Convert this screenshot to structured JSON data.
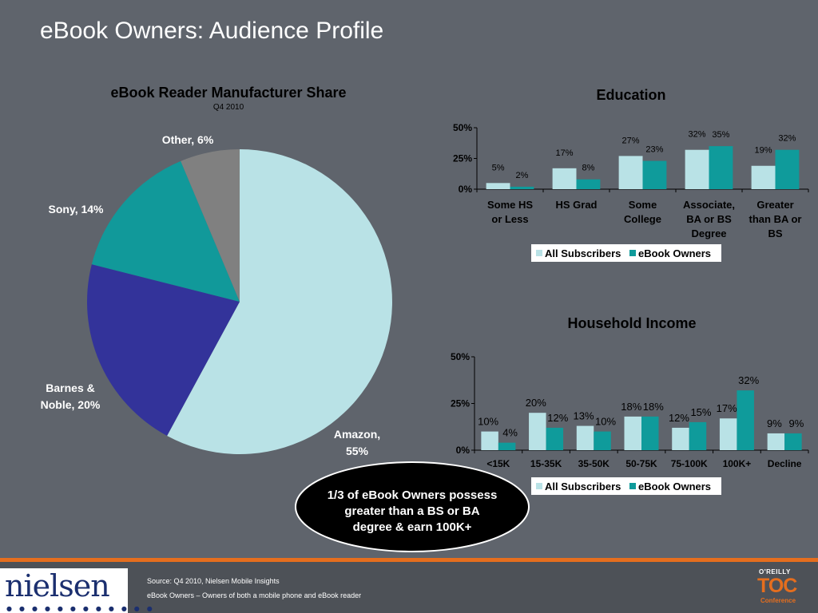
{
  "slide": {
    "title": "eBook Owners: Audience Profile",
    "callout": [
      "1/3 of eBook Owners possess",
      "greater than a BS or BA",
      "degree & earn 100K+"
    ]
  },
  "footer": {
    "source": "Source: Q4 2010, Nielsen Mobile Insights",
    "note": "eBook Owners – Owners of both a mobile phone and eBook reader",
    "nielsen_logo": "nielsen",
    "oreilly": "O'REILLY",
    "toc": "TOC",
    "conference": "Conference"
  },
  "colors": {
    "background": "#5f646c",
    "all_subscribers": "#b9e2e6",
    "ebook_owners": "#0f9b9b",
    "amazon": "#b9e2e6",
    "barnes_noble": "#33339a",
    "sony": "#11999a",
    "other": "#808080",
    "accent": "#e56e1e"
  },
  "chart_data": [
    {
      "type": "pie",
      "title": "eBook Reader Manufacturer Share",
      "subtitle": "Q4 2010",
      "slices": [
        {
          "label": "Amazon,",
          "value": 55,
          "value_label": "55%",
          "color": "#b9e2e6"
        },
        {
          "label": "Barnes &",
          "label2": "Noble,",
          "value": 20,
          "value_label": "20%",
          "color": "#33339a"
        },
        {
          "label": "Sony,",
          "value": 14,
          "value_label": "14%",
          "color": "#11999a"
        },
        {
          "label": "Other,",
          "value": 6,
          "value_label": "6%",
          "color": "#808080"
        }
      ]
    },
    {
      "type": "bar",
      "title": "Education",
      "categories": [
        [
          "Some HS",
          "or Less"
        ],
        [
          "HS Grad"
        ],
        [
          "Some",
          "College"
        ],
        [
          "Associate,",
          "BA or BS",
          "Degree"
        ],
        [
          "Greater",
          "than BA or",
          "BS"
        ]
      ],
      "series": [
        {
          "name": "All Subscribers",
          "values": [
            5,
            17,
            27,
            32,
            19
          ],
          "color": "#b9e2e6"
        },
        {
          "name": "eBook Owners",
          "values": [
            2,
            8,
            23,
            35,
            32
          ],
          "color": "#0f9b9b"
        }
      ],
      "yticks": [
        "0%",
        "25%",
        "50%"
      ],
      "ylim": [
        0,
        50
      ],
      "legend": "bottom"
    },
    {
      "type": "bar",
      "title": "Household Income",
      "categories": [
        [
          "<15K"
        ],
        [
          "15-35K"
        ],
        [
          "35-50K"
        ],
        [
          "50-75K"
        ],
        [
          "75-100K"
        ],
        [
          "100K+"
        ],
        [
          "Decline"
        ]
      ],
      "series": [
        {
          "name": "All Subscribers",
          "values": [
            10,
            20,
            13,
            18,
            12,
            17,
            9
          ],
          "color": "#b9e2e6"
        },
        {
          "name": "eBook Owners",
          "values": [
            4,
            12,
            10,
            18,
            15,
            32,
            9
          ],
          "color": "#0f9b9b"
        }
      ],
      "yticks": [
        "0%",
        "25%",
        "50%"
      ],
      "ylim": [
        0,
        50
      ],
      "legend": "bottom"
    }
  ]
}
